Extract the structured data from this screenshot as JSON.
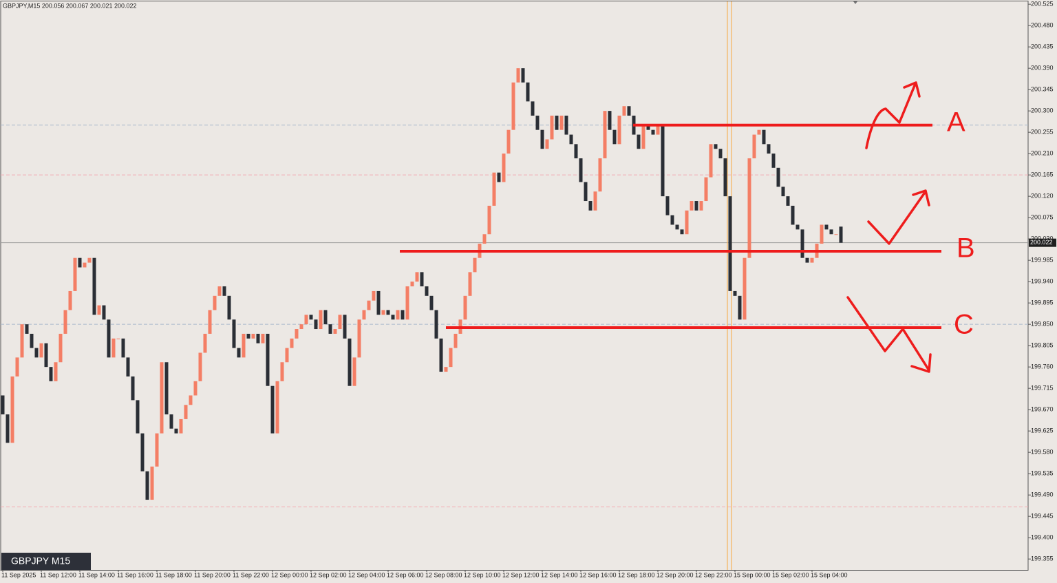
{
  "chart_data": {
    "type": "candlestick",
    "title": "GBPJPY,M15  200.056 200.067 200.021 200.022",
    "badge": "GBPJPY M15",
    "categories": [
      "11 Sep 2025",
      null,
      null,
      null,
      null,
      null,
      null,
      null,
      "11 Sep 12:00",
      null,
      null,
      null,
      null,
      null,
      null,
      null,
      "11 Sep 14:00",
      null,
      null,
      null,
      null,
      null,
      null,
      null,
      "11 Sep 16:00",
      null,
      null,
      null,
      null,
      null,
      null,
      null,
      "11 Sep 18:00",
      null,
      null,
      null,
      null,
      null,
      null,
      null,
      "11 Sep 20:00",
      null,
      null,
      null,
      null,
      null,
      null,
      null,
      "11 Sep 22:00",
      null,
      null,
      null,
      null,
      null,
      null,
      null,
      "12 Sep 00:00",
      null,
      null,
      null,
      null,
      null,
      null,
      null,
      "12 Sep 02:00",
      null,
      null,
      null,
      null,
      null,
      null,
      null,
      "12 Sep 04:00",
      null,
      null,
      null,
      null,
      null,
      null,
      null,
      "12 Sep 06:00",
      null,
      null,
      null,
      null,
      null,
      null,
      null,
      "12 Sep 08:00",
      null,
      null,
      null,
      null,
      null,
      null,
      null,
      "12 Sep 10:00",
      null,
      null,
      null,
      null,
      null,
      null,
      null,
      "12 Sep 12:00",
      null,
      null,
      null,
      null,
      null,
      null,
      null,
      "12 Sep 14:00",
      null,
      null,
      null,
      null,
      null,
      null,
      null,
      "12 Sep 16:00",
      null,
      null,
      null,
      null,
      null,
      null,
      null,
      "12 Sep 18:00",
      null,
      null,
      null,
      null,
      null,
      null,
      null,
      "12 Sep 20:00",
      null,
      null,
      null,
      null,
      null,
      null,
      null,
      "12 Sep 22:00",
      null,
      null,
      null,
      null,
      null,
      null,
      null,
      "15 Sep 00:00",
      null,
      null,
      null,
      null,
      null,
      null,
      null,
      "15 Sep 02:00",
      null,
      null,
      null,
      null,
      null,
      null,
      null,
      "15 Sep 04:00",
      null,
      null,
      null,
      null,
      null,
      null
    ],
    "open": [
      199.7,
      199.66,
      199.6,
      199.74,
      199.78,
      199.85,
      199.83,
      199.8,
      199.78,
      199.81,
      199.76,
      199.73,
      199.77,
      199.83,
      199.88,
      199.92,
      199.99,
      199.97,
      199.98,
      199.99,
      199.87,
      199.89,
      199.86,
      199.78,
      199.82,
      199.82,
      199.78,
      199.74,
      199.69,
      199.62,
      199.54,
      199.48,
      199.55,
      199.62,
      199.77,
      199.66,
      199.63,
      199.62,
      199.65,
      199.68,
      199.7,
      199.73,
      199.79,
      199.83,
      199.88,
      199.91,
      199.93,
      199.91,
      199.86,
      199.8,
      199.78,
      199.83,
      199.82,
      199.83,
      199.81,
      199.83,
      199.72,
      199.62,
      199.73,
      199.77,
      199.8,
      199.82,
      199.84,
      199.85,
      199.87,
      199.86,
      199.84,
      199.88,
      199.85,
      199.83,
      199.84,
      199.87,
      199.82,
      199.72,
      199.78,
      199.86,
      199.88,
      199.9,
      199.92,
      199.87,
      199.88,
      199.87,
      199.86,
      199.88,
      199.86,
      199.93,
      199.94,
      199.96,
      199.93,
      199.91,
      199.88,
      199.82,
      199.75,
      199.76,
      199.8,
      199.83,
      199.86,
      199.91,
      199.96,
      199.99,
      200.02,
      200.04,
      200.1,
      200.17,
      200.15,
      200.21,
      200.26,
      200.36,
      200.39,
      200.36,
      200.32,
      200.29,
      200.26,
      200.22,
      200.24,
      200.29,
      200.26,
      200.29,
      200.25,
      200.23,
      200.2,
      200.15,
      200.11,
      200.09,
      200.13,
      200.2,
      200.3,
      200.26,
      200.23,
      200.29,
      200.31,
      200.29,
      200.25,
      200.22,
      200.27,
      200.26,
      200.25,
      200.27,
      200.12,
      200.08,
      200.06,
      200.05,
      200.04,
      200.09,
      200.11,
      200.09,
      200.11,
      200.16,
      200.23,
      200.22,
      200.2,
      200.12,
      199.92,
      199.91,
      199.86,
      199.99,
      200.2,
      200.25,
      200.26,
      200.23,
      200.21,
      200.18,
      200.14,
      200.12,
      200.1,
      200.06,
      200.05,
      199.99,
      199.98,
      199.99,
      200.02,
      200.06,
      200.05,
      200.04,
      200.056
    ],
    "close": [
      199.66,
      199.6,
      199.74,
      199.78,
      199.85,
      199.83,
      199.8,
      199.78,
      199.81,
      199.76,
      199.73,
      199.77,
      199.83,
      199.88,
      199.92,
      199.99,
      199.97,
      199.98,
      199.99,
      199.87,
      199.89,
      199.86,
      199.78,
      199.82,
      199.82,
      199.78,
      199.74,
      199.69,
      199.62,
      199.54,
      199.48,
      199.55,
      199.62,
      199.77,
      199.66,
      199.63,
      199.62,
      199.65,
      199.68,
      199.7,
      199.73,
      199.79,
      199.83,
      199.88,
      199.91,
      199.93,
      199.91,
      199.86,
      199.8,
      199.78,
      199.83,
      199.82,
      199.83,
      199.81,
      199.83,
      199.72,
      199.62,
      199.73,
      199.77,
      199.8,
      199.82,
      199.84,
      199.85,
      199.87,
      199.86,
      199.84,
      199.88,
      199.85,
      199.83,
      199.84,
      199.87,
      199.82,
      199.72,
      199.78,
      199.86,
      199.88,
      199.9,
      199.92,
      199.87,
      199.88,
      199.87,
      199.86,
      199.88,
      199.86,
      199.93,
      199.94,
      199.96,
      199.93,
      199.91,
      199.88,
      199.82,
      199.75,
      199.76,
      199.8,
      199.83,
      199.86,
      199.91,
      199.96,
      199.99,
      200.02,
      200.04,
      200.1,
      200.17,
      200.15,
      200.21,
      200.26,
      200.36,
      200.39,
      200.36,
      200.32,
      200.29,
      200.26,
      200.22,
      200.24,
      200.29,
      200.26,
      200.29,
      200.25,
      200.23,
      200.2,
      200.15,
      200.11,
      200.09,
      200.13,
      200.2,
      200.3,
      200.26,
      200.23,
      200.29,
      200.31,
      200.29,
      200.25,
      200.22,
      200.27,
      200.26,
      200.25,
      200.27,
      200.12,
      200.08,
      200.06,
      200.05,
      200.04,
      200.09,
      200.11,
      200.09,
      200.11,
      200.16,
      200.23,
      200.22,
      200.2,
      200.12,
      199.92,
      199.91,
      199.86,
      199.99,
      200.2,
      200.25,
      200.26,
      200.23,
      200.21,
      200.18,
      200.14,
      200.12,
      200.1,
      200.06,
      200.05,
      199.99,
      199.98,
      199.99,
      200.02,
      200.06,
      200.05,
      200.04,
      200.04,
      200.022
    ],
    "up_color": "#f47e65",
    "down_color": "#2a2e35",
    "ylim": [
      199.332,
      200.531
    ],
    "yticks": [
      200.525,
      {
        "value": 200.48,
        "label": "200.480"
      },
      200.435,
      {
        "value": 200.39,
        "label": "200.390"
      },
      200.345,
      {
        "value": 200.3,
        "label": "200.300"
      },
      200.255,
      {
        "value": 200.21,
        "label": "200.210"
      },
      200.165,
      {
        "value": 200.12,
        "label": "200.120"
      },
      200.075,
      {
        "value": 200.03,
        "label": "200.030"
      },
      199.985,
      {
        "value": 199.94,
        "label": "199.940"
      },
      199.895,
      {
        "value": 199.85,
        "label": "199.850"
      },
      199.805,
      {
        "value": 199.76,
        "label": "199.760"
      },
      199.715,
      {
        "value": 199.67,
        "label": "199.670"
      },
      199.625,
      {
        "value": 199.58,
        "label": "199.580"
      },
      199.535,
      {
        "value": 199.49,
        "label": "199.490"
      },
      199.445,
      {
        "value": 199.4,
        "label": "199.400"
      },
      199.355
    ],
    "current_price": 200.022,
    "reference_lines": [
      {
        "value": 200.27,
        "color": "#a9b9cc"
      },
      {
        "value": 200.165,
        "color": "#f2aab2"
      },
      {
        "value": 199.85,
        "color": "#a9b9cc"
      },
      {
        "value": 199.465,
        "color": "#f2aab2"
      }
    ],
    "levels": [
      {
        "label": "A",
        "value": 200.27
      },
      {
        "label": "B",
        "value": 200.004
      },
      {
        "label": "C",
        "value": 199.843
      }
    ],
    "level_color": "#ee1c1c"
  }
}
